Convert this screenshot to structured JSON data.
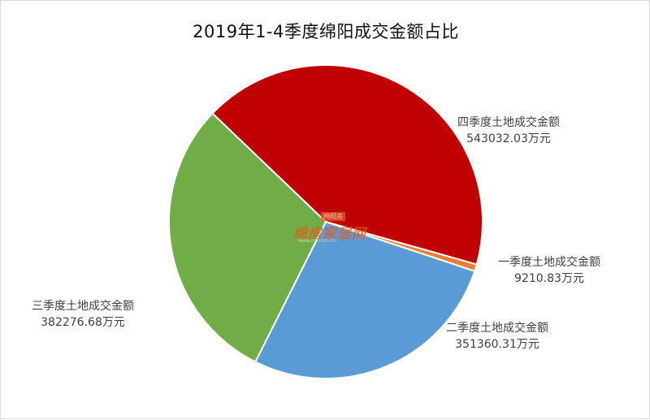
{
  "chart_data": {
    "type": "pie",
    "title": "2019年1-4季度绵阳成交金额占比",
    "slices": [
      {
        "label": "一季度土地成交金额",
        "value": 9210.83,
        "value_text": "9210.83万元",
        "color": "#ed7d31"
      },
      {
        "label": "二季度土地成交金额",
        "value": 351360.31,
        "value_text": "351360.31万元",
        "color": "#5b9bd5"
      },
      {
        "label": "三季度土地成交金额",
        "value": 382276.68,
        "value_text": "382276.68万元",
        "color": "#70ad47"
      },
      {
        "label": "四季度土地成交金额",
        "value": 543032.03,
        "value_text": "543032.03万元",
        "color": "#c00000"
      }
    ],
    "legend": "none",
    "data_labels": "outside"
  },
  "watermark": {
    "main": "绵房家居网",
    "top": "绵阳房",
    "sub": "www.mf.com.cn"
  }
}
